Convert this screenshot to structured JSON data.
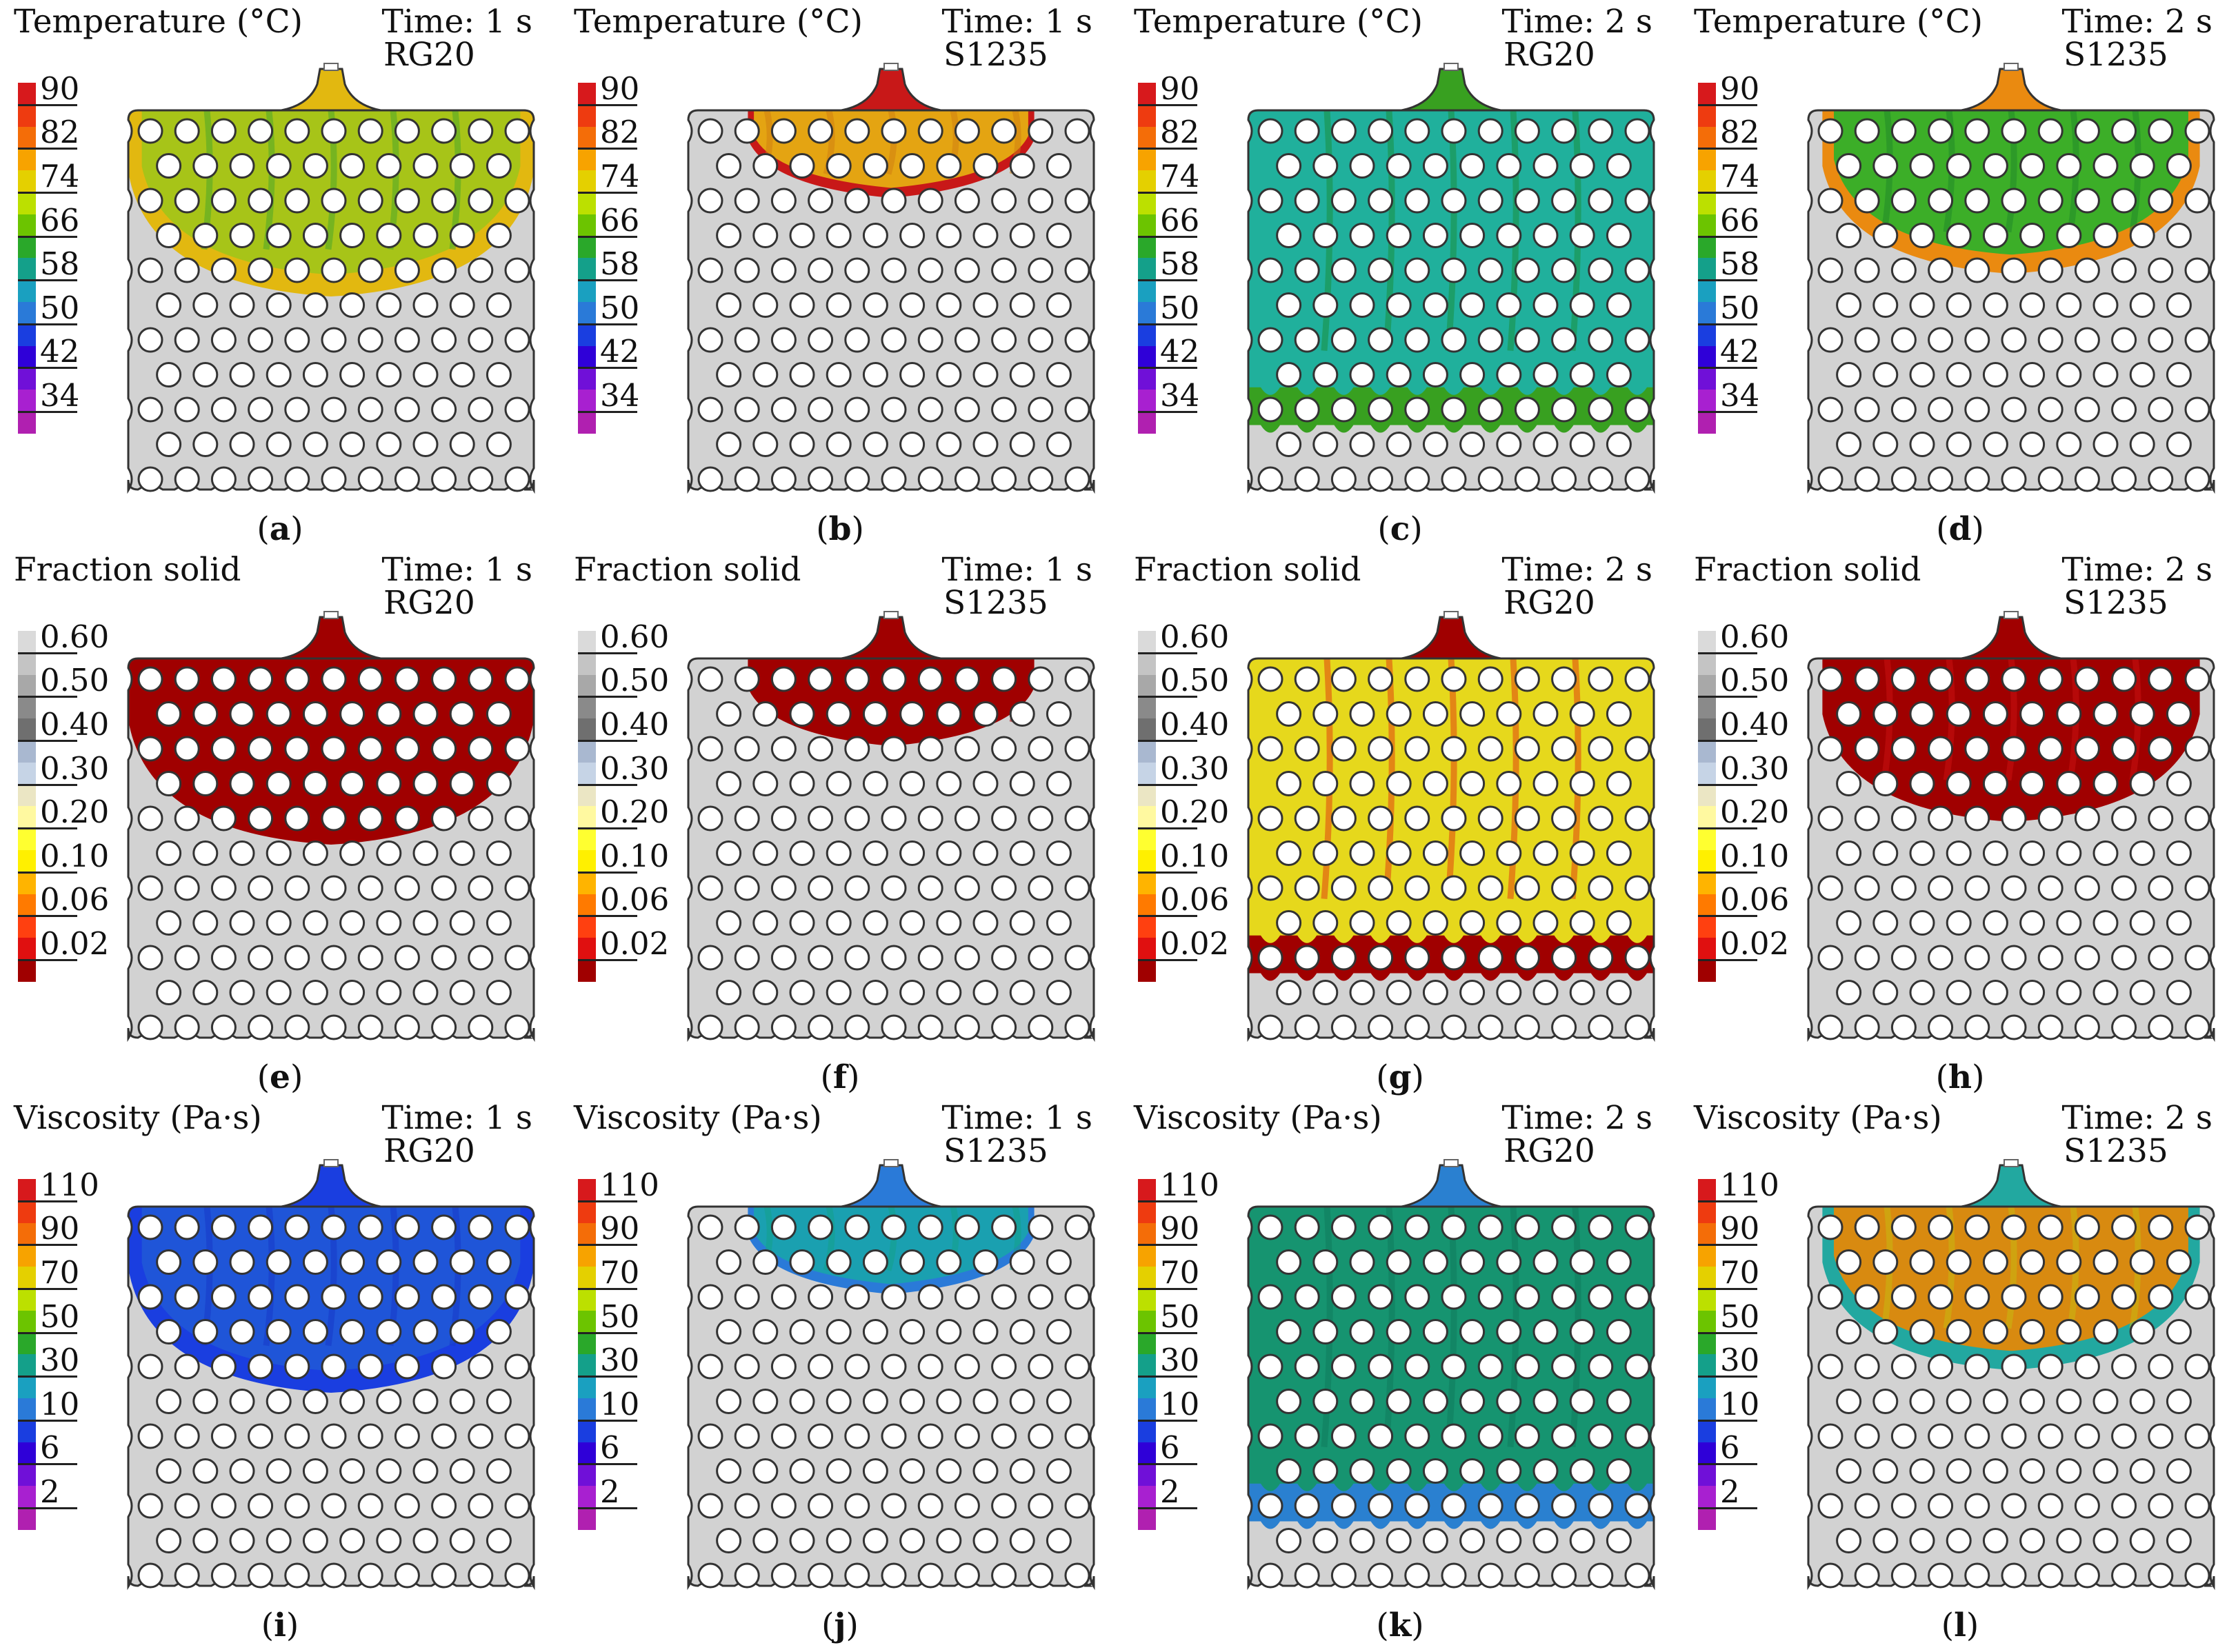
{
  "figure": {
    "panels": [
      {
        "id": "a",
        "caption": "a",
        "property": "temperature",
        "time": "Time: 1 s",
        "alloy": "RG20",
        "fill": "temp_rg20_1s"
      },
      {
        "id": "b",
        "caption": "b",
        "property": "temperature",
        "time": "Time: 1 s",
        "alloy": "S1235",
        "fill": "temp_s1235_1s"
      },
      {
        "id": "c",
        "caption": "c",
        "property": "temperature",
        "time": "Time: 2 s",
        "alloy": "RG20",
        "fill": "temp_rg20_2s"
      },
      {
        "id": "d",
        "caption": "d",
        "property": "temperature",
        "time": "Time: 2 s",
        "alloy": "S1235",
        "fill": "temp_s1235_2s"
      },
      {
        "id": "e",
        "caption": "e",
        "property": "fraction_solid",
        "time": "Time: 1 s",
        "alloy": "RG20",
        "fill": "fs_rg20_1s"
      },
      {
        "id": "f",
        "caption": "f",
        "property": "fraction_solid",
        "time": "Time: 1 s",
        "alloy": "S1235",
        "fill": "fs_s1235_1s"
      },
      {
        "id": "g",
        "caption": "g",
        "property": "fraction_solid",
        "time": "Time: 2 s",
        "alloy": "RG20",
        "fill": "fs_rg20_2s"
      },
      {
        "id": "h",
        "caption": "h",
        "property": "fraction_solid",
        "time": "Time: 2 s",
        "alloy": "S1235",
        "fill": "fs_s1235_2s"
      },
      {
        "id": "i",
        "caption": "i",
        "property": "viscosity",
        "time": "Time: 1 s",
        "alloy": "RG20",
        "fill": "visc_rg20_1s"
      },
      {
        "id": "j",
        "caption": "j",
        "property": "viscosity",
        "time": "Time: 1 s",
        "alloy": "S1235",
        "fill": "visc_s1235_1s"
      },
      {
        "id": "k",
        "caption": "k",
        "property": "viscosity",
        "time": "Time: 2 s",
        "alloy": "RG20",
        "fill": "visc_rg20_2s"
      },
      {
        "id": "l",
        "caption": "l",
        "property": "viscosity",
        "time": "Time: 2 s",
        "alloy": "S1235",
        "fill": "visc_s1235_2s"
      }
    ]
  },
  "properties": {
    "temperature": {
      "title": "Temperature (°C)",
      "labels": [
        "90",
        "82",
        "74",
        "66",
        "58",
        "50",
        "42",
        "34"
      ],
      "colors": [
        "#d7191c",
        "#ee3b10",
        "#f46d08",
        "#f7a300",
        "#e4d000",
        "#bce000",
        "#6cc400",
        "#2aa82a",
        "#14a08a",
        "#1aa0c0",
        "#2a7ad8",
        "#1a3ee0",
        "#2f00d8",
        "#7010d8",
        "#a820d0",
        "#b020b0"
      ]
    },
    "fraction_solid": {
      "title": "Fraction solid",
      "labels": [
        "0.60",
        "0.50",
        "0.40",
        "0.30",
        "0.20",
        "0.10",
        "0.06",
        "0.02"
      ],
      "colors": [
        "#dadada",
        "#c4c4c4",
        "#a8a8a8",
        "#8a8a8a",
        "#6f6f6f",
        "#a9b8d0",
        "#c6d4e6",
        "#ebe6c4",
        "#fff9a0",
        "#ffff30",
        "#fff000",
        "#ffb400",
        "#ff7a00",
        "#ff4010",
        "#e01010",
        "#a00000"
      ]
    },
    "viscosity": {
      "title": "Viscosity (Pa·s)",
      "labels": [
        "110",
        "90",
        "70",
        "50",
        "30",
        "10",
        "6",
        "2"
      ],
      "colors": [
        "#d7191c",
        "#ee3b10",
        "#f46d08",
        "#f7a300",
        "#e4d000",
        "#bce000",
        "#6cc400",
        "#2aa82a",
        "#14a08a",
        "#1aa0c0",
        "#2a7ad8",
        "#1a3ee0",
        "#2f00d8",
        "#7010d8",
        "#a820d0",
        "#b020b0"
      ]
    }
  },
  "fills": {
    "temp_rg20_1s": {
      "depth": 0.48,
      "color": "#a7c418",
      "edge": "#e2b810",
      "dark": "#4ea828"
    },
    "temp_s1235_1s": {
      "depth": 0.22,
      "color": "#e4a412",
      "edge": "#c81818",
      "dark": "#d08010"
    },
    "temp_rg20_2s": {
      "depth": 0.83,
      "color": "#20b09c",
      "edge": "#38a020",
      "dark": "#1a9040"
    },
    "temp_s1235_2s": {
      "depth": 0.42,
      "color": "#3cae28",
      "edge": "#ea8a10",
      "dark": "#208a28"
    },
    "fs_rg20_1s": {
      "depth": 0.48,
      "color": "#a00000",
      "edge": "#a00000",
      "dark": "#a00000"
    },
    "fs_s1235_1s": {
      "depth": 0.22,
      "color": "#a00000",
      "edge": "#a00000",
      "dark": "#a00000"
    },
    "fs_rg20_2s": {
      "depth": 0.83,
      "color": "#e6d81c",
      "edge": "#a00000",
      "dark": "#e04410"
    },
    "fs_s1235_2s": {
      "depth": 0.42,
      "color": "#a00000",
      "edge": "#a00000",
      "dark": "#c81010"
    },
    "visc_rg20_1s": {
      "depth": 0.48,
      "color": "#1f55d8",
      "edge": "#1a3ee0",
      "dark": "#1638c8"
    },
    "visc_s1235_1s": {
      "depth": 0.22,
      "color": "#1aa0b0",
      "edge": "#2a7ad8",
      "dark": "#14a08a"
    },
    "visc_rg20_2s": {
      "depth": 0.83,
      "color": "#169470",
      "edge": "#2a80d0",
      "dark": "#107a5c"
    },
    "visc_s1235_2s": {
      "depth": 0.42,
      "color": "#d88a10",
      "edge": "#22a8a0",
      "dark": "#c8b810"
    }
  },
  "plate": {
    "color": "#d2d2d2",
    "outline": "#333333",
    "hole_color": "#ffffff"
  }
}
